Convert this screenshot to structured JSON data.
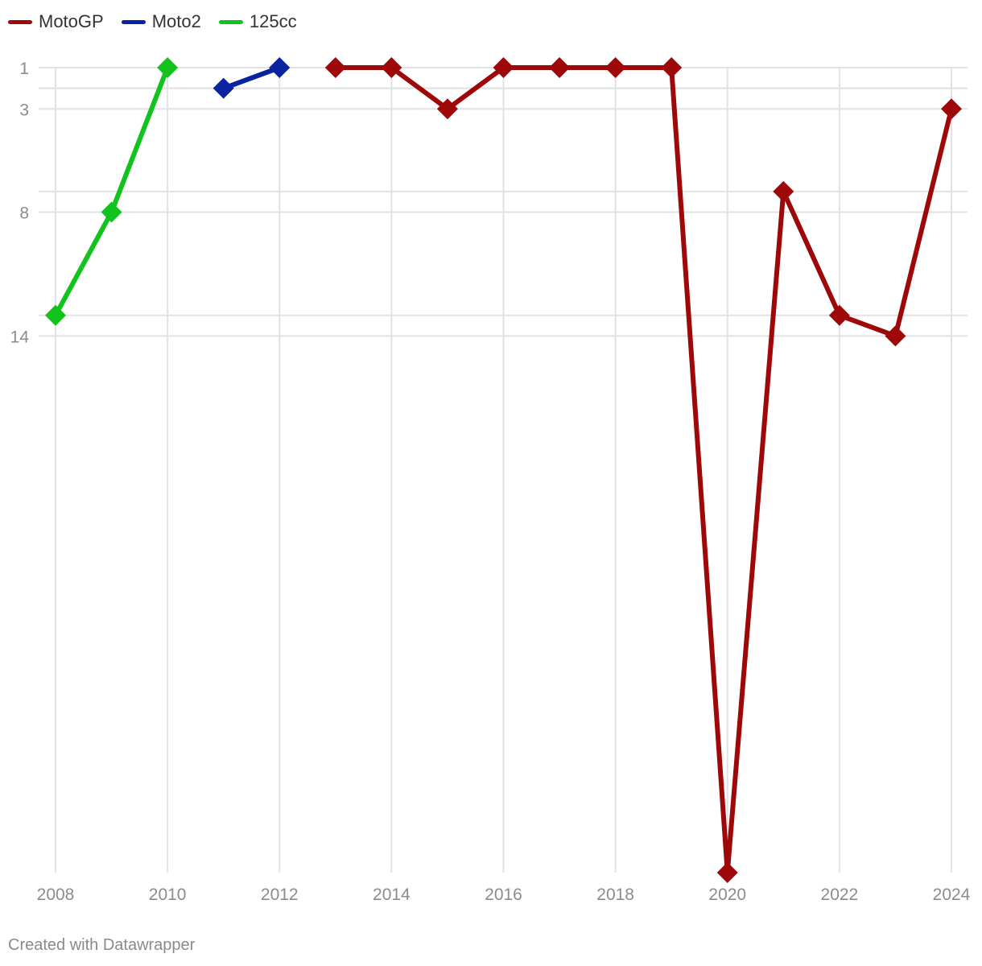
{
  "chart_data": {
    "type": "line",
    "x": [
      2008,
      2009,
      2010,
      2011,
      2012,
      2013,
      2014,
      2015,
      2016,
      2017,
      2018,
      2019,
      2020,
      2021,
      2022,
      2023,
      2024
    ],
    "series": [
      {
        "name": "MotoGP",
        "color": "#9e0808",
        "values": [
          null,
          null,
          null,
          null,
          null,
          1,
          1,
          3,
          1,
          1,
          1,
          1,
          40,
          7,
          13,
          14,
          3
        ]
      },
      {
        "name": "Moto2",
        "color": "#0a23a0",
        "values": [
          null,
          null,
          null,
          2,
          1,
          null,
          null,
          null,
          null,
          null,
          null,
          null,
          null,
          null,
          null,
          null,
          null
        ]
      },
      {
        "name": "125cc",
        "color": "#11c31c",
        "values": [
          13,
          8,
          1,
          null,
          null,
          null,
          null,
          null,
          null,
          null,
          null,
          null,
          null,
          null,
          null,
          null,
          null
        ]
      }
    ],
    "y_ticks": [
      "1",
      "3",
      "8",
      "14"
    ],
    "x_ticks": [
      "2008",
      "2010",
      "2012",
      "2014",
      "2016",
      "2018",
      "2020",
      "2022",
      "2024"
    ],
    "y_reversed": true,
    "ylim": [
      1,
      40
    ],
    "xlim": [
      2008,
      2024
    ],
    "marker": "diamond",
    "grid": true,
    "legend_position": "top-left"
  },
  "credit": "Created with Datawrapper"
}
